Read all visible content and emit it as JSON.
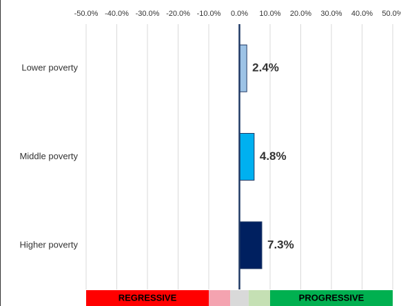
{
  "chart_data": {
    "type": "hbar",
    "categories": [
      "Lower poverty",
      "Middle poverty",
      "Higher poverty"
    ],
    "values": [
      2.4,
      4.8,
      7.3
    ],
    "value_labels": [
      "2.4%",
      "4.8%",
      "7.3%"
    ],
    "colors": [
      "#9dc3e6",
      "#00b0f0",
      "#002060"
    ],
    "xlim": [
      -50,
      50
    ],
    "xticks": [
      {
        "value": -50,
        "label": "-50.0%"
      },
      {
        "value": -40,
        "label": "-40.0%"
      },
      {
        "value": -30,
        "label": "-30.0%"
      },
      {
        "value": -20,
        "label": "-20.0%"
      },
      {
        "value": -10,
        "label": "-10.0%"
      },
      {
        "value": 0,
        "label": "0.0%"
      },
      {
        "value": 10,
        "label": "10.0%"
      },
      {
        "value": 20,
        "label": "20.0%"
      },
      {
        "value": 30,
        "label": "30.0%"
      },
      {
        "value": 40,
        "label": "40.0%"
      },
      {
        "value": 50,
        "label": "50.0%"
      }
    ],
    "grid": true,
    "bands": [
      {
        "from": -50,
        "to": -10,
        "color": "#ff0000",
        "label": "REGRESSIVE"
      },
      {
        "from": -10,
        "to": -3,
        "color": "#f4a3b0"
      },
      {
        "from": -3,
        "to": 3,
        "color": "#d9d9d9"
      },
      {
        "from": 3,
        "to": 10,
        "color": "#c5e0b4"
      },
      {
        "from": 10,
        "to": 50,
        "color": "#00b050",
        "label": "PROGRESSIVE"
      }
    ]
  }
}
